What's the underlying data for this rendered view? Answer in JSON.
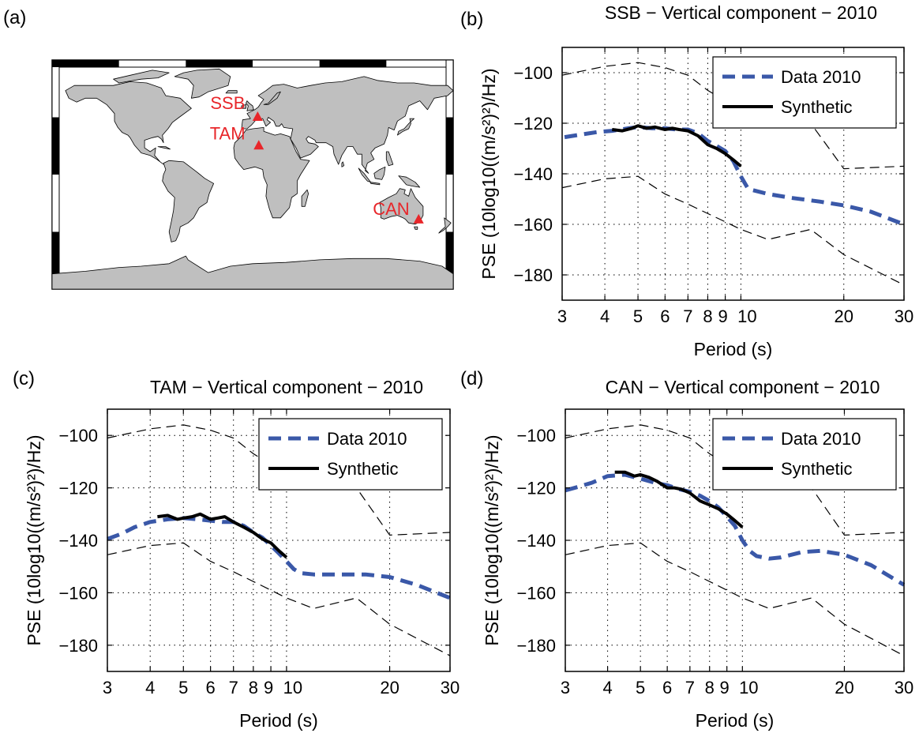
{
  "figure": {
    "panel_a_label": "(a)",
    "map": {
      "stations": [
        {
          "name": "SSB",
          "lon": 4.5,
          "lat": 45.3
        },
        {
          "name": "TAM",
          "lon": 5.5,
          "lat": 22.8
        },
        {
          "name": "CAN",
          "lon": 149.0,
          "lat": -35.3
        }
      ],
      "colors": {
        "land": "#bfbfbf",
        "ocean": "#ffffff",
        "station": "#e8262a"
      }
    }
  },
  "chart_data": [
    {
      "panel_label": "(b)",
      "type": "line",
      "title": "SSB − Vertical component − 2010",
      "xlabel": "Period (s)",
      "ylabel": "PSE (10log10((m/s²)²)/Hz)",
      "xscale": "log",
      "xlim": [
        3,
        30
      ],
      "ylim": [
        -190,
        -90
      ],
      "xticks": [
        3,
        4,
        5,
        6,
        7,
        8,
        9,
        10,
        20,
        30
      ],
      "xticklabels": [
        "3",
        "4",
        "5",
        "6",
        "7",
        "8",
        "9",
        "10",
        "20",
        "30"
      ],
      "yticks": [
        -180,
        -160,
        -140,
        -120,
        -100
      ],
      "yticklabels": [
        "−180",
        "−160",
        "−140",
        "−120",
        "−100"
      ],
      "grid": true,
      "legend_position": "top-right",
      "series": [
        {
          "name": "Data 2010",
          "style": "dashed",
          "color": "#3a58a8",
          "x": [
            3.05,
            3.4,
            3.8,
            4.2,
            4.7,
            5.0,
            5.5,
            6.0,
            6.5,
            7.0,
            7.5,
            8.0,
            8.5,
            9.0,
            9.5,
            10.0,
            10.5,
            12,
            14,
            17,
            20,
            24,
            30
          ],
          "y": [
            -125.5,
            -124.5,
            -123.5,
            -123,
            -122,
            -121.5,
            -122,
            -122,
            -122.5,
            -122.5,
            -124,
            -127,
            -129,
            -131,
            -135,
            -141,
            -146,
            -148,
            -149.5,
            -151,
            -152.5,
            -155,
            -160
          ]
        },
        {
          "name": "Synthetic",
          "style": "solid",
          "color": "#000000",
          "x": [
            4.2,
            4.5,
            4.8,
            5.0,
            5.3,
            5.6,
            6.0,
            6.3,
            6.6,
            7.0,
            7.5,
            8.0,
            8.5,
            9.0,
            9.5,
            10.0
          ],
          "y": [
            -122.5,
            -123,
            -122,
            -121,
            -122,
            -121.5,
            -122.5,
            -122,
            -122.5,
            -123,
            -125,
            -128.5,
            -130,
            -132,
            -134.5,
            -137
          ]
        }
      ],
      "noise_models": [
        {
          "x": [
            3,
            4,
            5,
            6,
            7,
            8,
            9.5,
            12,
            16,
            20,
            30
          ],
          "y": [
            -101,
            -97.5,
            -96,
            -98,
            -101,
            -107,
            -113,
            -117,
            -120,
            -138,
            -137
          ]
        },
        {
          "x": [
            3,
            4,
            5,
            6,
            7,
            9,
            10,
            12,
            16,
            20,
            30
          ],
          "y": [
            -145.5,
            -142,
            -141,
            -148,
            -152,
            -159,
            -162,
            -166,
            -162,
            -172,
            -184
          ]
        }
      ]
    },
    {
      "panel_label": "(c)",
      "type": "line",
      "title": "TAM − Vertical component − 2010",
      "xlabel": "Period (s)",
      "ylabel": "PSE (10log10((m/s²)²)/Hz)",
      "xscale": "log",
      "xlim": [
        3,
        30
      ],
      "ylim": [
        -190,
        -90
      ],
      "xticks": [
        3,
        4,
        5,
        6,
        7,
        8,
        9,
        10,
        20,
        30
      ],
      "xticklabels": [
        "3",
        "4",
        "5",
        "6",
        "7",
        "8",
        "9",
        "10",
        "20",
        "30"
      ],
      "yticks": [
        -180,
        -160,
        -140,
        -120,
        -100
      ],
      "yticklabels": [
        "−180",
        "−160",
        "−140",
        "−120",
        "−100"
      ],
      "grid": true,
      "legend_position": "top-right",
      "series": [
        {
          "name": "Data 2010",
          "style": "dashed",
          "color": "#3a58a8",
          "x": [
            3.0,
            3.3,
            3.6,
            4.0,
            4.5,
            5.0,
            5.5,
            6.0,
            6.5,
            7.0,
            7.5,
            8.0,
            8.5,
            9.0,
            9.5,
            10.0,
            10.5,
            11,
            12,
            14,
            17,
            20,
            24,
            30
          ],
          "y": [
            -139.5,
            -137.5,
            -135,
            -133,
            -132,
            -131.5,
            -132,
            -132.5,
            -133,
            -133,
            -134.5,
            -137,
            -139,
            -142,
            -145,
            -148,
            -151,
            -152.5,
            -153,
            -153,
            -153,
            -154,
            -157,
            -162
          ]
        },
        {
          "name": "Synthetic",
          "style": "solid",
          "color": "#000000",
          "x": [
            4.2,
            4.5,
            4.8,
            5.0,
            5.3,
            5.6,
            6.0,
            6.3,
            6.6,
            7.0,
            7.5,
            8.0,
            8.5,
            9.0,
            9.5,
            10.0
          ],
          "y": [
            -131,
            -130.5,
            -132,
            -131.5,
            -131,
            -130,
            -132,
            -131.5,
            -131,
            -133,
            -135,
            -137,
            -139.5,
            -141,
            -144,
            -146.5
          ]
        }
      ],
      "noise_models": [
        {
          "x": [
            3,
            4,
            5,
            6,
            7,
            8,
            9.5,
            12,
            16,
            20,
            30
          ],
          "y": [
            -101,
            -97.5,
            -96,
            -98,
            -101,
            -107,
            -113,
            -117,
            -120,
            -138,
            -137
          ]
        },
        {
          "x": [
            3,
            4,
            5,
            6,
            7,
            9,
            10,
            12,
            16,
            20,
            30
          ],
          "y": [
            -145.5,
            -142,
            -141,
            -148,
            -152,
            -159,
            -162,
            -166,
            -162,
            -172,
            -184
          ]
        }
      ]
    },
    {
      "panel_label": "(d)",
      "type": "line",
      "title": "CAN − Vertical component − 2010",
      "xlabel": "Period (s)",
      "ylabel": "PSE (10log10((m/s²)²)/Hz)",
      "xscale": "log",
      "xlim": [
        3,
        30
      ],
      "ylim": [
        -190,
        -90
      ],
      "xticks": [
        3,
        4,
        5,
        6,
        7,
        8,
        9,
        10,
        20,
        30
      ],
      "xticklabels": [
        "3",
        "4",
        "5",
        "6",
        "7",
        "8",
        "9",
        "10",
        "20",
        "30"
      ],
      "yticks": [
        -180,
        -160,
        -140,
        -120,
        -100
      ],
      "yticklabels": [
        "−180",
        "−160",
        "−140",
        "−120",
        "−100"
      ],
      "grid": true,
      "legend_position": "top-right",
      "series": [
        {
          "name": "Data 2010",
          "style": "dashed",
          "color": "#3a58a8",
          "x": [
            3.0,
            3.3,
            3.6,
            4.0,
            4.5,
            5.0,
            5.5,
            6.0,
            6.5,
            7.0,
            7.5,
            8.0,
            8.5,
            9.0,
            9.5,
            10.0,
            10.5,
            11,
            12,
            13,
            15,
            17,
            20,
            24,
            30
          ],
          "y": [
            -121,
            -119.5,
            -118,
            -115.5,
            -115,
            -116.5,
            -118,
            -119,
            -120.5,
            -121.5,
            -123,
            -125,
            -127.5,
            -131,
            -134.5,
            -140,
            -144,
            -146,
            -147,
            -146.5,
            -144.5,
            -144,
            -145.5,
            -149.5,
            -157
          ]
        },
        {
          "name": "Synthetic",
          "style": "solid",
          "color": "#000000",
          "x": [
            4.2,
            4.5,
            4.8,
            5.0,
            5.3,
            5.6,
            6.0,
            6.3,
            6.6,
            7.0,
            7.5,
            8.0,
            8.5,
            9.0,
            9.5,
            10.0
          ],
          "y": [
            -114,
            -114,
            -115.5,
            -115,
            -116,
            -117.5,
            -120,
            -120,
            -120.5,
            -122,
            -125,
            -126.5,
            -128,
            -130,
            -132.5,
            -135
          ]
        }
      ],
      "noise_models": [
        {
          "x": [
            3,
            4,
            5,
            6,
            7,
            8,
            9.5,
            12,
            16,
            20,
            30
          ],
          "y": [
            -101,
            -97.5,
            -96,
            -98,
            -101,
            -107,
            -113,
            -117,
            -120,
            -138,
            -137
          ]
        },
        {
          "x": [
            3,
            4,
            5,
            6,
            7,
            9,
            10,
            12,
            16,
            20,
            30
          ],
          "y": [
            -145.5,
            -142,
            -141,
            -148,
            -152,
            -159,
            -162,
            -166,
            -162,
            -172,
            -184
          ]
        }
      ]
    }
  ]
}
